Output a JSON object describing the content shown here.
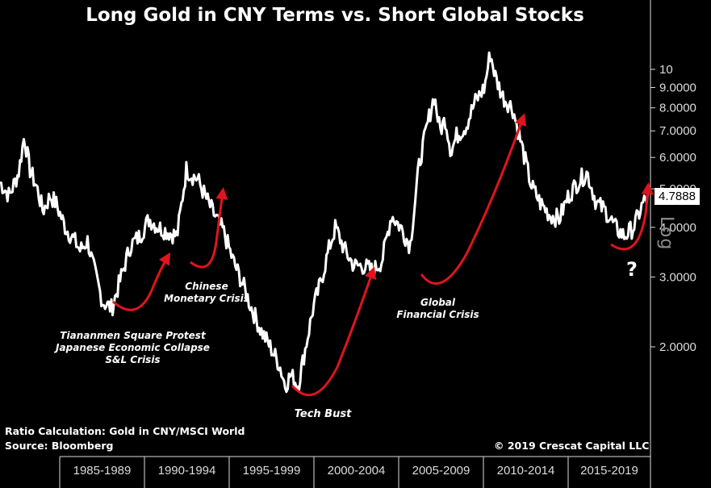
{
  "header": {
    "title": "Long Gold in CNY Terms vs. Short Global Stocks"
  },
  "footer": {
    "ratio_note": "Ratio Calculation: Gold in CNY/MSCI World",
    "source_note": "Source: Bloomberg",
    "copyright": "© 2019 Crescat Capital LLC"
  },
  "axis": {
    "scale_label": "Log",
    "last_value_badge": "4.7888"
  },
  "colors": {
    "background": "#000000",
    "line": "#ffffff",
    "annotation_arrow": "#e0141e",
    "tick_text": "#dcdcdc"
  },
  "chart_data": {
    "type": "line",
    "title": "Long Gold in CNY Terms vs. Short Global Stocks",
    "xlabel": "",
    "ylabel": "",
    "y_scale": "log",
    "ylim": [
      1.5,
      11.5
    ],
    "y_ticks": [
      {
        "value": 10,
        "label": "10"
      },
      {
        "value": 9,
        "label": "9.0000"
      },
      {
        "value": 8,
        "label": "8.0000"
      },
      {
        "value": 7,
        "label": "7.0000"
      },
      {
        "value": 6,
        "label": "6.0000"
      },
      {
        "value": 5,
        "label": "5.0000"
      },
      {
        "value": 4,
        "label": "4.0000"
      },
      {
        "value": 3,
        "label": "3.0000"
      },
      {
        "value": 2,
        "label": "2.0000"
      }
    ],
    "x_periods": [
      "1985-1989",
      "1990-1994",
      "1995-1999",
      "2000-2004",
      "2005-2009",
      "2010-2014",
      "2015-2019"
    ],
    "xlim": [
      1985.0,
      2019.9
    ],
    "grid": false,
    "legend": "none",
    "last_value": 4.7888,
    "series": [
      {
        "x": [
          1985.0,
          1985.5,
          1986.0,
          1986.3,
          1986.6,
          1987.0,
          1987.3,
          1987.7,
          1988.0,
          1988.5,
          1989.0,
          1989.3,
          1989.7,
          1990.0,
          1990.5,
          1991.0,
          1991.5,
          1992.0,
          1992.5,
          1993.0,
          1993.5,
          1994.0,
          1994.5,
          1995.0,
          1995.3,
          1995.6,
          1996.0,
          1996.5,
          1997.0,
          1997.5,
          1998.0,
          1998.5,
          1999.0,
          1999.5,
          2000.0,
          2000.3,
          2000.6,
          2001.0,
          2001.4,
          2001.8,
          2002.2,
          2002.7,
          2003.0,
          2003.5,
          2004.0,
          2004.5,
          2005.0,
          2005.5,
          2006.0,
          2006.5,
          2007.0,
          2007.5,
          2008.0,
          2008.3,
          2008.6,
          2008.9,
          2009.2,
          2009.5,
          2010.0,
          2010.5,
          2011.0,
          2011.3,
          2011.6,
          2012.0,
          2012.5,
          2013.0,
          2013.5,
          2014.0,
          2014.5,
          2015.0,
          2015.5,
          2016.0,
          2016.5,
          2017.0,
          2017.5,
          2018.0,
          2018.5,
          2019.0,
          2019.5,
          2019.8
        ],
        "values": [
          5.2,
          4.8,
          5.5,
          6.8,
          5.6,
          5.0,
          4.4,
          4.8,
          4.6,
          4.0,
          3.7,
          3.5,
          3.7,
          3.2,
          2.6,
          2.5,
          3.0,
          3.6,
          3.8,
          4.2,
          4.0,
          3.9,
          3.8,
          5.6,
          5.4,
          5.3,
          4.8,
          4.3,
          3.9,
          3.3,
          2.9,
          2.5,
          2.2,
          2.0,
          1.8,
          1.6,
          1.7,
          1.6,
          2.0,
          2.5,
          2.9,
          3.6,
          4.0,
          3.5,
          3.2,
          3.2,
          3.1,
          3.3,
          4.3,
          4.0,
          3.6,
          5.8,
          7.5,
          8.6,
          7.0,
          7.5,
          6.2,
          6.8,
          7.2,
          8.3,
          9.0,
          11.0,
          9.5,
          8.5,
          8.0,
          6.4,
          5.1,
          4.6,
          4.3,
          4.2,
          4.8,
          5.2,
          5.5,
          4.6,
          4.4,
          4.0,
          3.8,
          4.0,
          4.6,
          4.79
        ]
      }
    ],
    "annotations": [
      {
        "text": "Tiananmen Square Protest\nJapanese Economic Collapse\nS&L Crisis"
      },
      {
        "text": "Chinese\nMonetary Crisis"
      },
      {
        "text": "Tech Bust"
      },
      {
        "text": "Global\nFinancial Crisis"
      },
      {
        "text": "?"
      }
    ]
  }
}
